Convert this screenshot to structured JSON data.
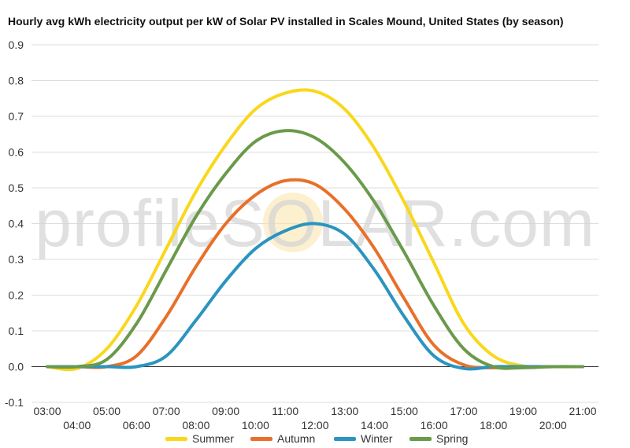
{
  "chart_data": {
    "type": "line",
    "title": "Hourly avg kWh electricity output per kW of Solar PV installed in Scales Mound, United States (by season)",
    "watermark": "profileSOLAR.com",
    "x": [
      "03:00",
      "04:00",
      "05:00",
      "06:00",
      "07:00",
      "08:00",
      "09:00",
      "10:00",
      "11:00",
      "12:00",
      "13:00",
      "14:00",
      "15:00",
      "16:00",
      "17:00",
      "18:00",
      "19:00",
      "20:00",
      "21:00"
    ],
    "ylim": [
      -0.1,
      0.9
    ],
    "yticks": [
      "0.9",
      "0.8",
      "0.7",
      "0.6",
      "0.5",
      "0.4",
      "0.3",
      "0.2",
      "0.1",
      "0.0",
      "-0.1"
    ],
    "grid": true,
    "legend_position": "bottom",
    "series": [
      {
        "name": "Summer",
        "color": "#F9D71C",
        "values": [
          0.0,
          -0.005,
          0.05,
          0.17,
          0.33,
          0.49,
          0.62,
          0.72,
          0.765,
          0.77,
          0.72,
          0.61,
          0.46,
          0.29,
          0.12,
          0.03,
          0.002,
          0.0,
          0.0
        ]
      },
      {
        "name": "Autumn",
        "color": "#E8702A",
        "values": [
          0.0,
          0.0,
          0.0,
          0.03,
          0.14,
          0.28,
          0.4,
          0.48,
          0.52,
          0.51,
          0.44,
          0.33,
          0.19,
          0.06,
          0.005,
          -0.003,
          0.0,
          0.0,
          0.0
        ]
      },
      {
        "name": "Winter",
        "color": "#2B94BF",
        "values": [
          0.0,
          0.0,
          0.0,
          0.0,
          0.03,
          0.13,
          0.24,
          0.33,
          0.38,
          0.4,
          0.37,
          0.27,
          0.14,
          0.03,
          -0.005,
          0.0,
          0.0,
          0.0,
          0.0
        ]
      },
      {
        "name": "Spring",
        "color": "#6A9A4A",
        "values": [
          0.0,
          0.0,
          0.02,
          0.12,
          0.27,
          0.42,
          0.54,
          0.63,
          0.66,
          0.64,
          0.57,
          0.46,
          0.32,
          0.17,
          0.05,
          0.0,
          -0.003,
          0.0,
          0.0
        ]
      }
    ]
  }
}
